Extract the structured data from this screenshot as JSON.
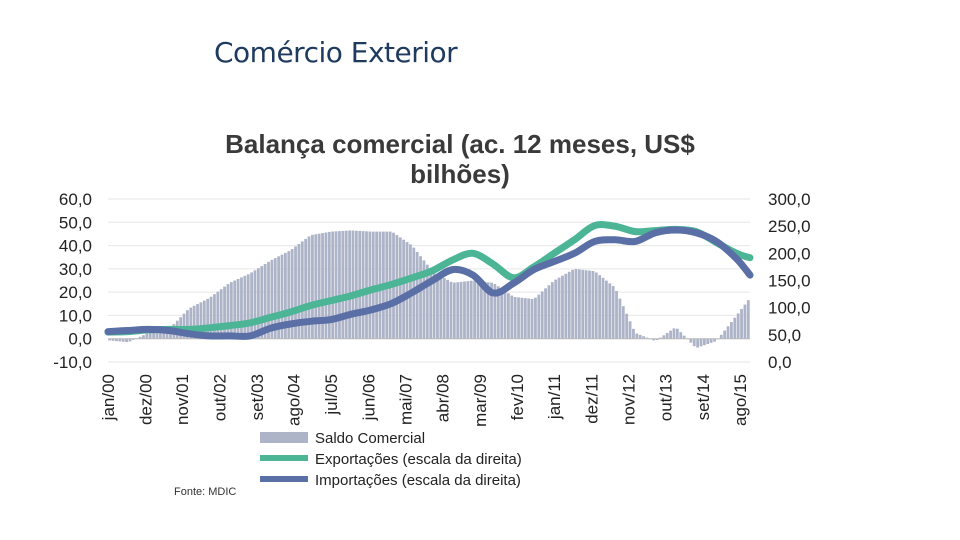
{
  "slide": {
    "title": "Comércio Exterior",
    "source": "Fonte: MDIC"
  },
  "colors": {
    "bars": "#aeb4c8",
    "exports": "#4bb596",
    "imports": "#5a6fa6",
    "title": "#1f3a5f"
  },
  "chart_data": {
    "type": "bar+line",
    "title_lines": [
      "Balança comercial (ac. 12 meses, US$",
      "bilhões)"
    ],
    "left_axis": {
      "ylim": [
        -10,
        60
      ],
      "ticks": [
        "60,0",
        "50,0",
        "40,0",
        "30,0",
        "20,0",
        "10,0",
        "0,0",
        "-10,0"
      ],
      "tick_values": [
        60,
        50,
        40,
        30,
        20,
        10,
        0,
        -10
      ]
    },
    "right_axis": {
      "ylim": [
        0,
        300
      ],
      "ticks": [
        "300,0",
        "250,0",
        "200,0",
        "150,0",
        "100,0",
        "50,0",
        "0,0"
      ],
      "tick_values": [
        300,
        250,
        200,
        150,
        100,
        50,
        0
      ]
    },
    "x_range": [
      2000.0,
      2015.83
    ],
    "x_tick_labels": [
      "jan/00",
      "dez/00",
      "nov/01",
      "out/02",
      "set/03",
      "ago/04",
      "jul/05",
      "jun/06",
      "mai/07",
      "abr/08",
      "mar/09",
      "fev/10",
      "jan/11",
      "dez/11",
      "nov/12",
      "out/13",
      "set/14",
      "ago/15"
    ],
    "x_tick_positions": [
      2000.0,
      2000.92,
      2001.83,
      2002.75,
      2003.67,
      2004.58,
      2005.5,
      2006.42,
      2007.33,
      2008.25,
      2009.17,
      2010.08,
      2011.0,
      2011.92,
      2012.83,
      2013.75,
      2014.67,
      2015.58
    ],
    "series": [
      {
        "name": "Saldo Comercial",
        "type": "bar",
        "axis": "left",
        "x": [
          2000.0,
          2000.5,
          2001.0,
          2001.5,
          2002.0,
          2002.5,
          2003.0,
          2003.5,
          2004.0,
          2004.5,
          2005.0,
          2005.5,
          2006.0,
          2006.5,
          2007.0,
          2007.5,
          2008.0,
          2008.5,
          2009.0,
          2009.5,
          2010.0,
          2010.5,
          2011.0,
          2011.5,
          2012.0,
          2012.5,
          2013.0,
          2013.5,
          2014.0,
          2014.5,
          2015.0,
          2015.5,
          2015.83
        ],
        "values": [
          -0.7,
          -1.5,
          2.5,
          4.0,
          13.0,
          17.5,
          24.0,
          28.0,
          33.5,
          38.0,
          44.5,
          46.0,
          46.5,
          46.0,
          46.0,
          40.0,
          29.0,
          24.0,
          25.0,
          24.0,
          18.0,
          17.0,
          25.0,
          30.0,
          29.0,
          22.0,
          2.5,
          -1.0,
          5.0,
          -4.0,
          -1.0,
          10.0,
          17.5
        ]
      },
      {
        "name": "Exportações (escala da direita)",
        "type": "line",
        "axis": "right",
        "x": [
          2000.0,
          2000.5,
          2001.0,
          2001.5,
          2002.0,
          2002.5,
          2003.0,
          2003.5,
          2004.0,
          2004.5,
          2005.0,
          2005.5,
          2006.0,
          2006.5,
          2007.0,
          2007.5,
          2008.0,
          2008.5,
          2009.0,
          2009.5,
          2010.0,
          2010.5,
          2011.0,
          2011.5,
          2012.0,
          2012.5,
          2013.0,
          2013.5,
          2014.0,
          2014.5,
          2015.0,
          2015.5,
          2015.83
        ],
        "values": [
          55,
          56,
          59,
          60,
          60,
          63,
          67,
          72,
          82,
          92,
          104,
          113,
          122,
          133,
          143,
          155,
          168,
          188,
          200,
          180,
          155,
          175,
          200,
          225,
          251,
          250,
          240,
          242,
          244,
          240,
          220,
          200,
          192
        ]
      },
      {
        "name": "Importações (escala da direita)",
        "type": "line",
        "axis": "right",
        "x": [
          2000.0,
          2000.5,
          2001.0,
          2001.5,
          2002.0,
          2002.5,
          2003.0,
          2003.5,
          2004.0,
          2004.5,
          2005.0,
          2005.5,
          2006.0,
          2006.5,
          2007.0,
          2007.5,
          2008.0,
          2008.5,
          2009.0,
          2009.5,
          2010.0,
          2010.5,
          2011.0,
          2011.5,
          2012.0,
          2012.5,
          2013.0,
          2013.5,
          2014.0,
          2014.5,
          2015.0,
          2015.5,
          2015.83
        ],
        "values": [
          56,
          58,
          60,
          58,
          52,
          48,
          48,
          48,
          62,
          70,
          75,
          78,
          88,
          96,
          108,
          128,
          150,
          170,
          160,
          127,
          145,
          170,
          185,
          200,
          222,
          225,
          222,
          238,
          243,
          238,
          222,
          190,
          160
        ]
      }
    ],
    "legend": [
      "Saldo Comercial",
      "Exportações (escala da direita)",
      "Importações (escala da direita)"
    ]
  }
}
